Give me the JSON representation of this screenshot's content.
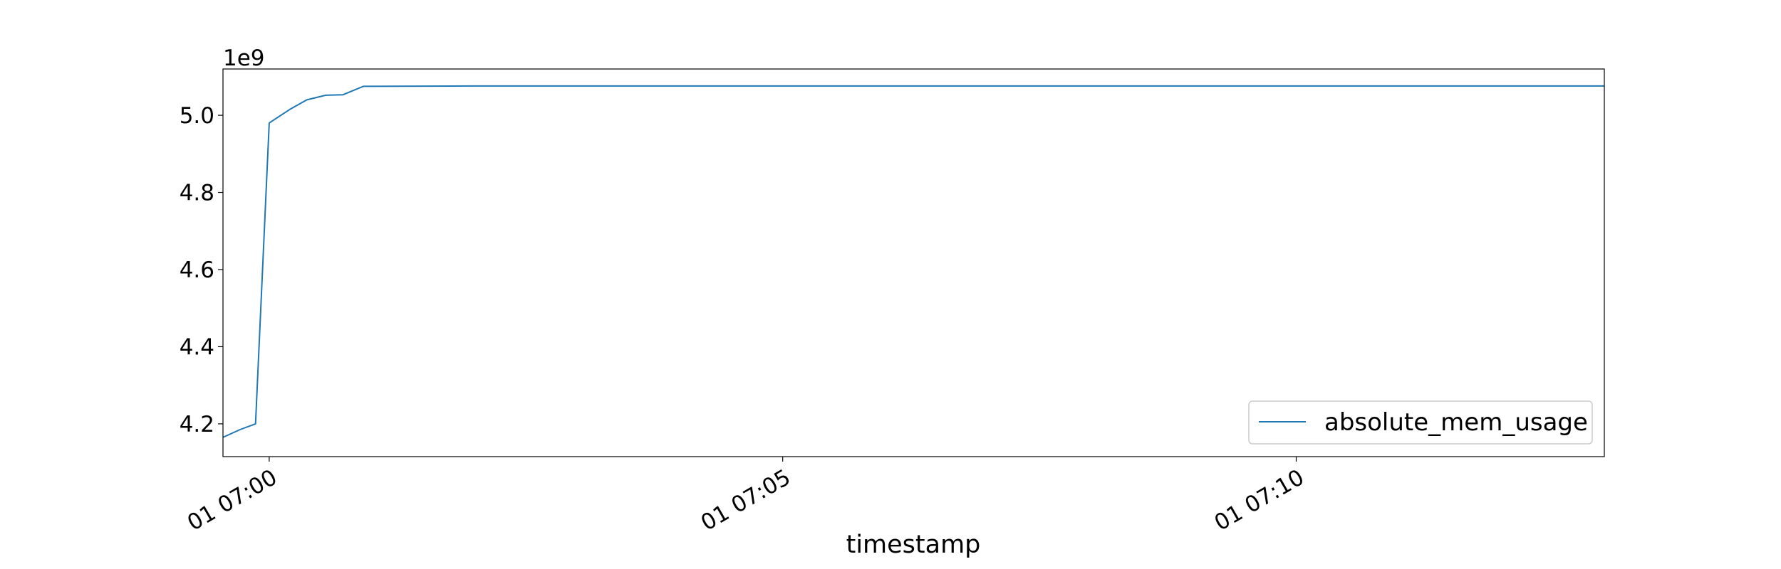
{
  "chart_data": {
    "type": "line",
    "title": "",
    "xlabel": "timestamp",
    "ylabel": "",
    "y_offset_label": "1e9",
    "x_tick_labels": [
      "01 07:00",
      "01 07:05",
      "01 07:10"
    ],
    "x_ticks": [
      "07:00:00",
      "07:05:00",
      "07:10:00"
    ],
    "xlim": [
      "06:59:33",
      "07:13:00"
    ],
    "y_tick_labels": [
      "4.2",
      "4.4",
      "4.6",
      "4.8",
      "5.0"
    ],
    "y_ticks": [
      4.2,
      4.4,
      4.6,
      4.8,
      5.0
    ],
    "ylim": [
      4.115,
      5.12
    ],
    "y_unit_multiplier": 1000000000.0,
    "grid": false,
    "legend_position": "lower-right",
    "series": [
      {
        "name": "absolute_mem_usage",
        "color": "#1f77b4",
        "x": [
          "06:59:33",
          "06:59:43",
          "06:59:52",
          "07:00:00",
          "07:00:12",
          "07:00:22",
          "07:00:33",
          "07:00:43",
          "07:00:55",
          "07:02:00",
          "07:05:00",
          "07:08:00",
          "07:10:00",
          "07:13:00"
        ],
        "y": [
          4.165,
          4.185,
          4.2,
          4.98,
          5.015,
          5.04,
          5.052,
          5.053,
          5.075,
          5.076,
          5.076,
          5.076,
          5.076,
          5.076
        ]
      }
    ]
  }
}
